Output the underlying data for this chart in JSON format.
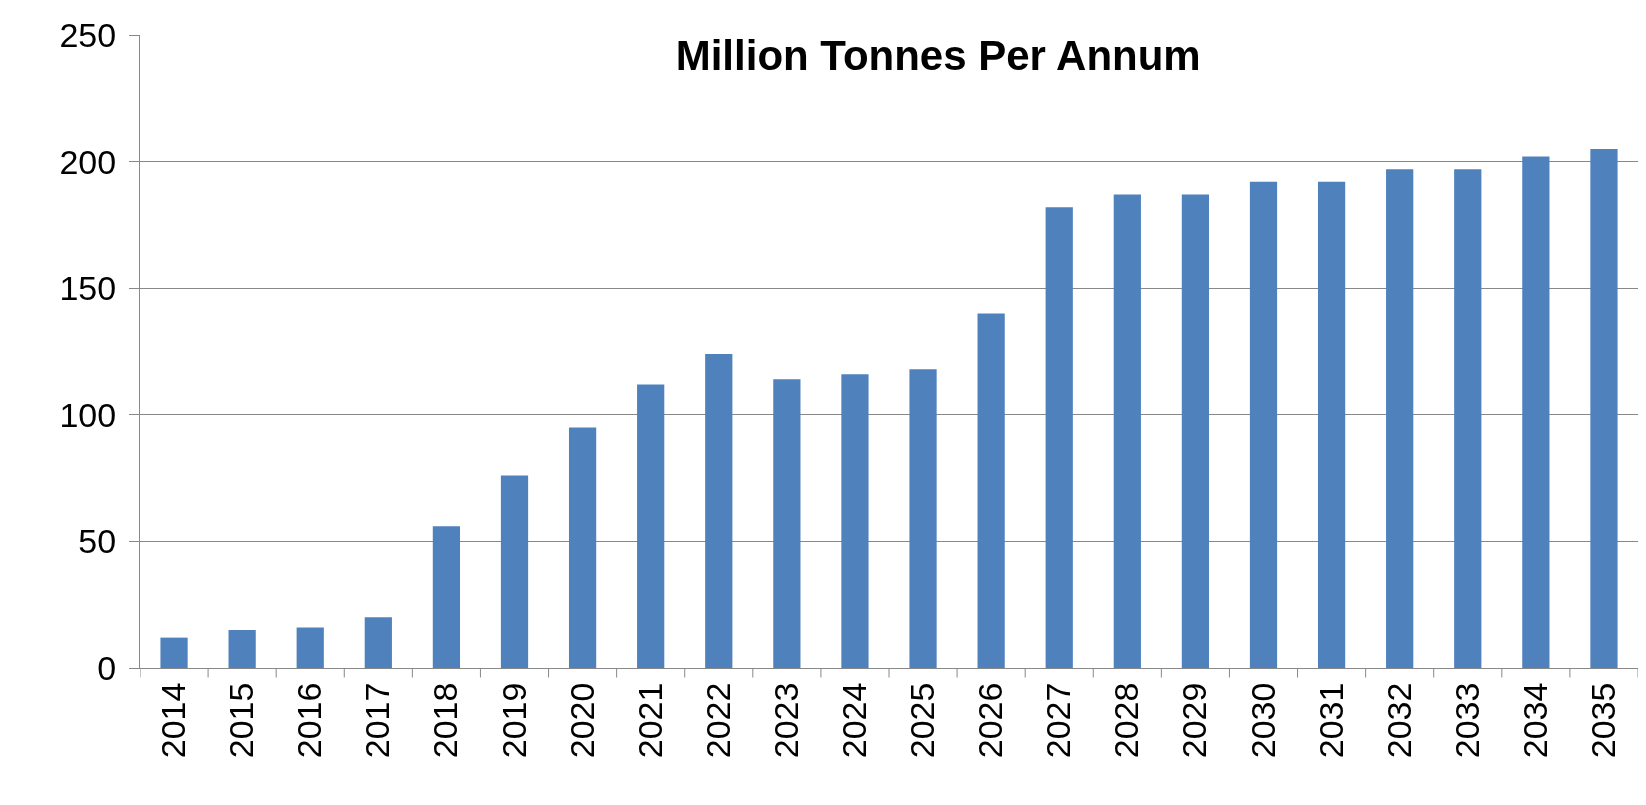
{
  "chart_data": {
    "type": "bar",
    "title": "Million Tonnes Per Annum",
    "categories": [
      "2014",
      "2015",
      "2016",
      "2017",
      "2018",
      "2019",
      "2020",
      "2021",
      "2022",
      "2023",
      "2024",
      "2025",
      "2026",
      "2027",
      "2028",
      "2029",
      "2030",
      "2031",
      "2032",
      "2033",
      "2034",
      "2035"
    ],
    "values": [
      12,
      15,
      16,
      20,
      56,
      76,
      95,
      112,
      124,
      114,
      116,
      118,
      140,
      182,
      187,
      187,
      192,
      192,
      197,
      197,
      202,
      205
    ],
    "color": "#4f81bd",
    "ylim": [
      0,
      250
    ],
    "yticks": [
      0,
      50,
      100,
      150,
      200,
      250
    ],
    "grid": "y"
  }
}
